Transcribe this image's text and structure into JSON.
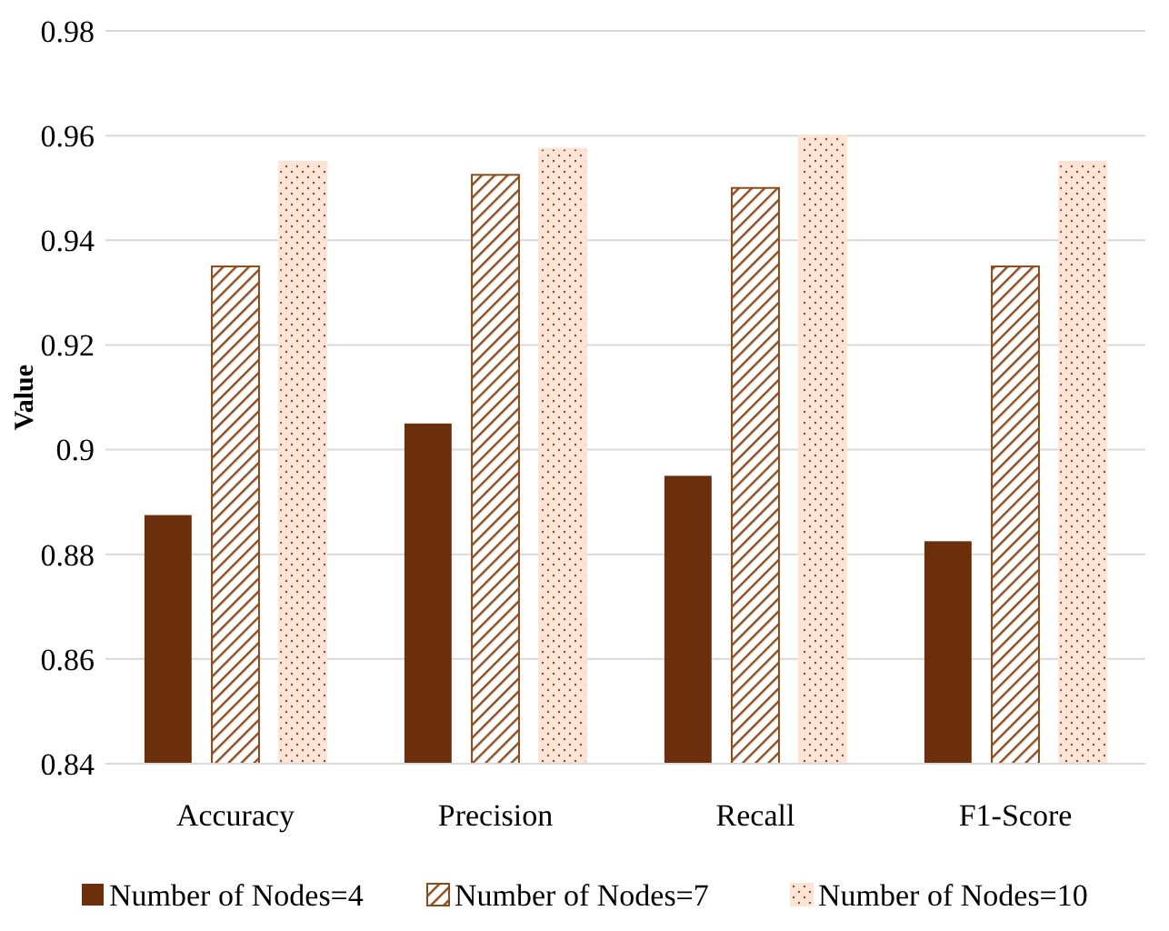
{
  "chart_data": {
    "type": "bar",
    "ylabel": "Value",
    "categories": [
      "Accuracy",
      "Precision",
      "Recall",
      "F1-Score"
    ],
    "series": [
      {
        "name": "Number of Nodes=4",
        "color": "#6b2f0c",
        "values": [
          0.8875,
          0.905,
          0.895,
          0.8825
        ]
      },
      {
        "name": "Number of Nodes=7",
        "color": "#8b4a1c",
        "values": [
          0.935,
          0.9525,
          0.95,
          0.935
        ]
      },
      {
        "name": "Number of Nodes=10",
        "color": "#fce4d6",
        "values": [
          0.955,
          0.9575,
          0.96,
          0.955
        ]
      }
    ],
    "ylim": [
      0.84,
      0.98
    ],
    "yticks": [
      0.84,
      0.86,
      0.88,
      0.9,
      0.92,
      0.94,
      0.96,
      0.98
    ],
    "grid": "y",
    "legend": "bottom"
  }
}
